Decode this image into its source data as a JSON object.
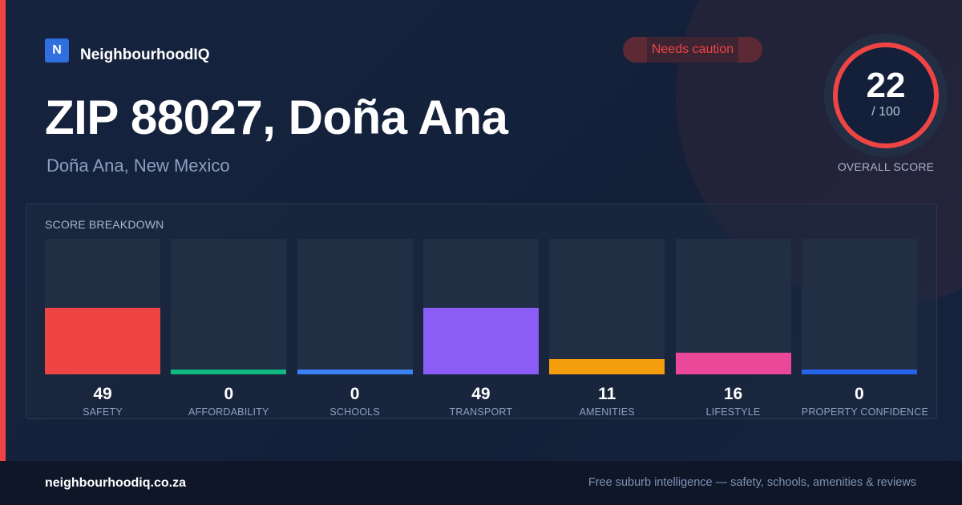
{
  "brand": {
    "logo_letter": "N",
    "name": "NeighbourhoodIQ",
    "accent_color": "#2f6fe0"
  },
  "badge": {
    "text": "Needs caution",
    "color": "#ef4444"
  },
  "header": {
    "title": "ZIP 88027, Doña Ana",
    "subtitle": "Doña Ana, New Mexico"
  },
  "score": {
    "value": "22",
    "max": "/ 100",
    "label": "OVERALL SCORE",
    "ring_color": "#ef4444"
  },
  "breakdown": {
    "title": "SCORE BREAKDOWN",
    "items": [
      {
        "label": "SAFETY",
        "value": 49,
        "color": "#ef4444"
      },
      {
        "label": "AFFORDABILITY",
        "value": 0,
        "color": "#10b981"
      },
      {
        "label": "SCHOOLS",
        "value": 0,
        "color": "#3b82f6"
      },
      {
        "label": "TRANSPORT",
        "value": 49,
        "color": "#8b5cf6"
      },
      {
        "label": "AMENITIES",
        "value": 11,
        "color": "#f59e0b"
      },
      {
        "label": "LIFESTYLE",
        "value": 16,
        "color": "#ec4899"
      },
      {
        "label": "PROPERTY CONFIDENCE",
        "value": 0,
        "color": "#2563eb"
      }
    ]
  },
  "footer": {
    "url": "neighbourhoodiq.co.za",
    "tagline": "Free suburb intelligence — safety, schools, amenities & reviews"
  }
}
